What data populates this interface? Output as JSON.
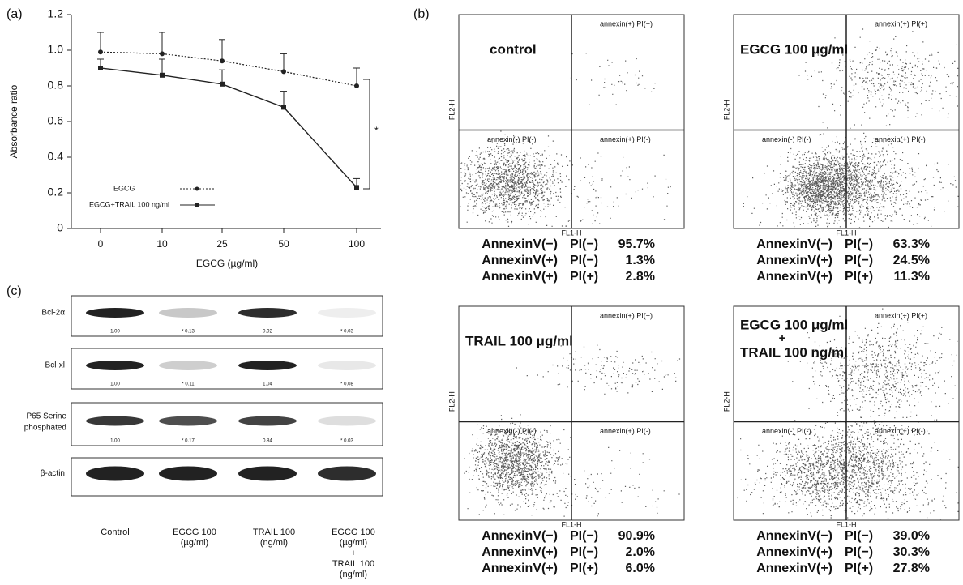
{
  "panel_labels": [
    "(a)",
    "(b)",
    "(c)"
  ],
  "chart_data": {
    "type": "line",
    "ylabel": "Absorbance ratio",
    "xlabel": "EGCG (µg/ml)",
    "categories": [
      "0",
      "10",
      "25",
      "50",
      "100"
    ],
    "series": [
      {
        "name": "EGCG",
        "color": "#222222",
        "dash": true,
        "values": [
          0.99,
          0.98,
          0.94,
          0.88,
          0.8
        ],
        "errors": [
          0.11,
          0.12,
          0.12,
          0.1,
          0.1
        ]
      },
      {
        "name": "EGCG+TRAIL 100 ng/ml",
        "color": "#222222",
        "dash": false,
        "values": [
          0.9,
          0.86,
          0.81,
          0.68,
          0.23
        ],
        "errors": [
          0.05,
          0.09,
          0.08,
          0.09,
          0.05
        ]
      }
    ],
    "ylim": [
      0,
      1.2
    ],
    "yticks": [
      0,
      0.2,
      0.4,
      0.6,
      0.8,
      {
        "value": 1,
        "label": "1.0"
      },
      1.2
    ],
    "annotation": "*"
  },
  "panel_b": {
    "axis_x": "FL1-H",
    "axis_y": "FL2-H",
    "quadrants": [
      "annexin(-) PI(-)",
      "annexin(+) PI(-)",
      "annexin(+) PI(+)"
    ],
    "plots": [
      {
        "label": "control",
        "label_2": null,
        "stats": [
          [
            "AnnexinV(−)",
            "PI(−)",
            "95.7%"
          ],
          [
            "AnnexinV(+)",
            "PI(−)",
            "1.3%"
          ],
          [
            "AnnexinV(+)",
            "PI(+)",
            "2.8%"
          ]
        ]
      },
      {
        "label": "EGCG 100 μg/ml",
        "label_2": null,
        "stats": [
          [
            "AnnexinV(−)",
            "PI(−)",
            "63.3%"
          ],
          [
            "AnnexinV(+)",
            "PI(−)",
            "24.5%"
          ],
          [
            "AnnexinV(+)",
            "PI(+)",
            "11.3%"
          ]
        ]
      },
      {
        "label": "TRAIL 100 μg/ml",
        "label_2": null,
        "stats": [
          [
            "AnnexinV(−)",
            "PI(−)",
            "90.9%"
          ],
          [
            "AnnexinV(+)",
            "PI(−)",
            "2.0%"
          ],
          [
            "AnnexinV(+)",
            "PI(+)",
            "6.0%"
          ]
        ]
      },
      {
        "label": "EGCG 100 μg/ml",
        "label_2": "+",
        "label_3": "TRAIL 100 ng/ml",
        "stats": [
          [
            "AnnexinV(−)",
            "PI(−)",
            "39.0%"
          ],
          [
            "AnnexinV(+)",
            "PI(−)",
            "30.3%"
          ],
          [
            "AnnexinV(+)",
            "PI(+)",
            "27.8%"
          ]
        ]
      }
    ]
  },
  "panel_c": {
    "rows": [
      {
        "label": "Bcl-2α",
        "quant": [
          "1.00",
          "* 0.13",
          "0.92",
          "* 0.03"
        ]
      },
      {
        "label": "Bcl-xl",
        "quant": [
          "1.00",
          "* 0.11",
          "1.04",
          "* 0.08"
        ]
      },
      {
        "label": "P65 Serine phosphated",
        "quant": [
          "1.00",
          "* 0.17",
          "0.84",
          "* 0.03"
        ]
      },
      {
        "label": "β-actin",
        "quant": []
      }
    ],
    "columns": [
      [
        "Control"
      ],
      [
        "EGCG 100",
        "(µg/ml)"
      ],
      [
        "TRAIL 100",
        "(ng/ml)"
      ],
      [
        "EGCG 100",
        "(µg/ml)",
        "+",
        "TRAIL 100",
        "(ng/ml)"
      ]
    ]
  }
}
